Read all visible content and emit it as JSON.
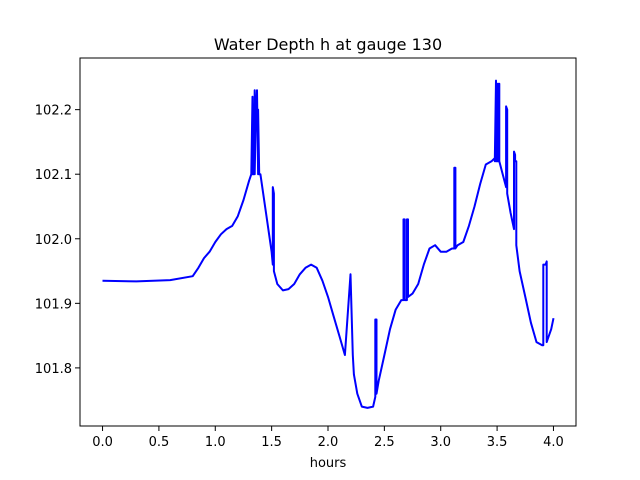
{
  "chart_data": {
    "type": "line",
    "title": "Water Depth h at gauge 130",
    "xlabel": "hours",
    "ylabel": "",
    "xlim": [
      -0.2,
      4.2
    ],
    "ylim": [
      101.71,
      102.28
    ],
    "xticks": [
      0.0,
      0.5,
      1.0,
      1.5,
      2.0,
      2.5,
      3.0,
      3.5,
      4.0
    ],
    "xtick_labels": [
      "0.0",
      "0.5",
      "1.0",
      "1.5",
      "2.0",
      "2.5",
      "3.0",
      "3.5",
      "4.0"
    ],
    "yticks": [
      101.8,
      101.9,
      102.0,
      102.1,
      102.2
    ],
    "ytick_labels": [
      "101.8",
      "101.9",
      "102.0",
      "102.1",
      "102.2"
    ],
    "grid": false,
    "legend": "none",
    "series": [
      {
        "color": "#0000ff",
        "x": [
          0.0,
          0.3,
          0.6,
          0.8,
          0.85,
          0.9,
          0.95,
          1.0,
          1.05,
          1.1,
          1.15,
          1.2,
          1.25,
          1.3,
          1.32,
          1.33,
          1.33,
          1.34,
          1.35,
          1.35,
          1.36,
          1.37,
          1.38,
          1.38,
          1.39,
          1.4,
          1.45,
          1.5,
          1.51,
          1.51,
          1.52,
          1.52,
          1.55,
          1.6,
          1.65,
          1.7,
          1.75,
          1.8,
          1.85,
          1.9,
          1.95,
          2.0,
          2.05,
          2.1,
          2.15,
          2.2,
          2.22,
          2.22,
          2.23,
          2.23,
          2.26,
          2.3,
          2.35,
          2.4,
          2.42,
          2.42,
          2.43,
          2.43,
          2.45,
          2.5,
          2.55,
          2.6,
          2.65,
          2.67,
          2.67,
          2.68,
          2.68,
          2.7,
          2.7,
          2.71,
          2.71,
          2.75,
          2.8,
          2.85,
          2.9,
          2.95,
          3.0,
          3.05,
          3.1,
          3.12,
          3.12,
          3.13,
          3.13,
          3.15,
          3.2,
          3.25,
          3.3,
          3.35,
          3.4,
          3.45,
          3.48,
          3.48,
          3.49,
          3.49,
          3.5,
          3.5,
          3.51,
          3.51,
          3.52,
          3.52,
          3.55,
          3.58,
          3.58,
          3.59,
          3.59,
          3.62,
          3.65,
          3.65,
          3.66,
          3.66,
          3.67,
          3.67,
          3.7,
          3.75,
          3.8,
          3.85,
          3.9,
          3.91,
          3.91,
          3.93,
          3.93,
          3.94,
          3.94,
          3.95,
          3.98,
          4.0
        ],
        "y": [
          101.935,
          101.934,
          101.936,
          101.942,
          101.955,
          101.97,
          101.98,
          101.995,
          102.007,
          102.015,
          102.02,
          102.035,
          102.06,
          102.09,
          102.1,
          102.22,
          102.1,
          102.1,
          102.23,
          102.1,
          102.2,
          102.23,
          102.1,
          102.2,
          102.1,
          102.1,
          102.04,
          101.98,
          101.96,
          102.08,
          102.07,
          101.95,
          101.93,
          101.92,
          101.922,
          101.93,
          101.945,
          101.955,
          101.96,
          101.955,
          101.935,
          101.91,
          101.88,
          101.85,
          101.82,
          101.945,
          101.82,
          101.82,
          101.79,
          101.79,
          101.76,
          101.74,
          101.738,
          101.74,
          101.755,
          101.875,
          101.875,
          101.76,
          101.78,
          101.82,
          101.86,
          101.89,
          101.905,
          101.905,
          102.03,
          102.03,
          101.905,
          101.905,
          102.03,
          102.03,
          101.91,
          101.915,
          101.93,
          101.96,
          101.985,
          101.99,
          101.98,
          101.98,
          101.985,
          101.985,
          102.11,
          102.11,
          101.985,
          101.99,
          101.995,
          102.02,
          102.05,
          102.085,
          102.115,
          102.12,
          102.125,
          102.12,
          102.245,
          102.12,
          102.24,
          102.12,
          102.24,
          102.12,
          102.24,
          102.12,
          102.1,
          102.08,
          102.205,
          102.2,
          102.07,
          102.04,
          102.015,
          102.135,
          102.13,
          102.12,
          102.12,
          101.99,
          101.95,
          101.91,
          101.87,
          101.84,
          101.835,
          101.835,
          101.96,
          101.96,
          101.96,
          101.965,
          101.84,
          101.845,
          101.86,
          101.877
        ]
      }
    ]
  }
}
